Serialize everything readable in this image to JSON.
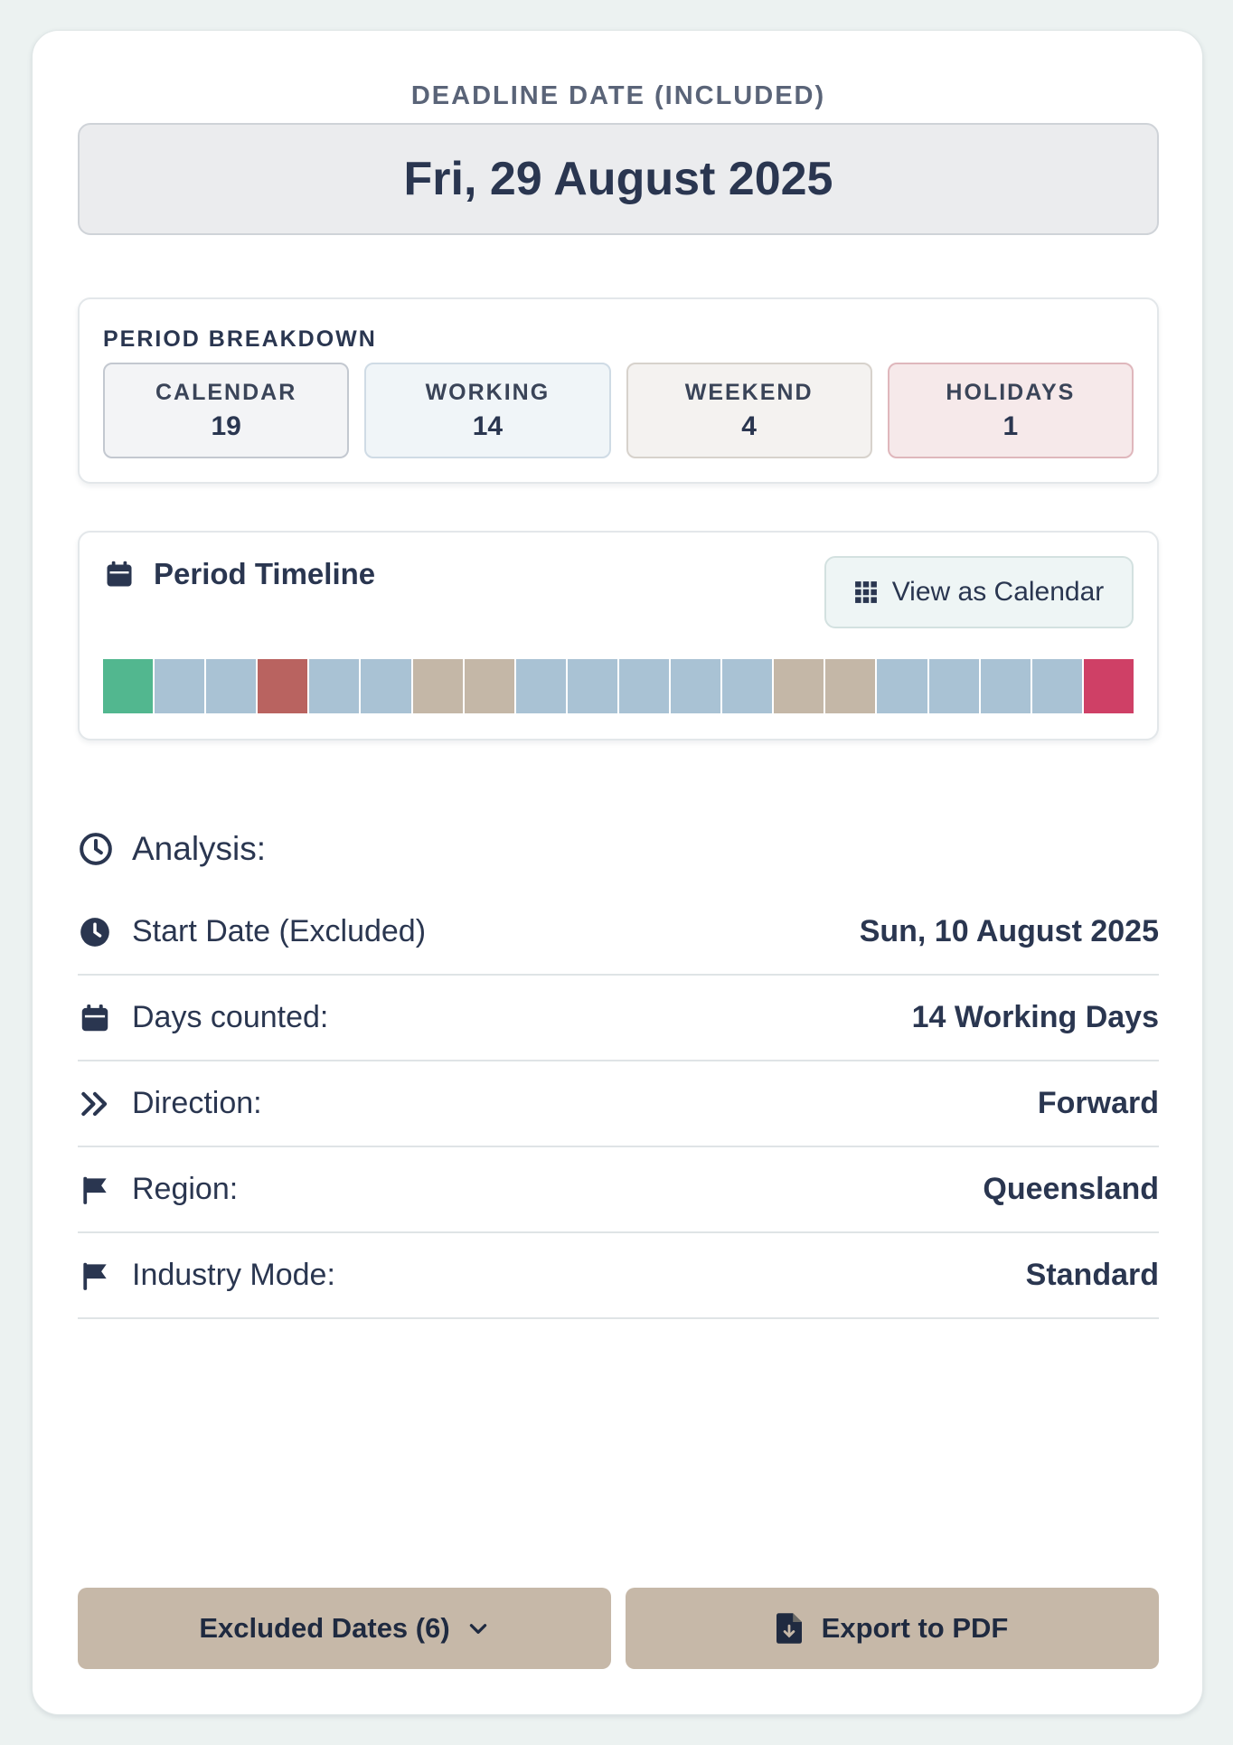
{
  "deadline": {
    "label": "DEADLINE DATE (INCLUDED)",
    "value": "Fri, 29 August 2025"
  },
  "breakdown": {
    "title": "PERIOD BREAKDOWN",
    "tiles": [
      {
        "label": "CALENDAR",
        "value": "19"
      },
      {
        "label": "WORKING",
        "value": "14"
      },
      {
        "label": "WEEKEND",
        "value": "4"
      },
      {
        "label": "HOLIDAYS",
        "value": "1"
      }
    ]
  },
  "timeline": {
    "title": "Period Timeline",
    "view_button": "View as Calendar",
    "title_icon": "calendar-icon",
    "button_icon": "grid-icon",
    "colors": {
      "start": "#52b78f",
      "working": "#a9c2d4",
      "weekend": "#c4b7a7",
      "holiday": "#b96360",
      "deadline": "#cf4066"
    },
    "days": [
      "start",
      "working",
      "working",
      "holiday",
      "working",
      "working",
      "weekend",
      "weekend",
      "working",
      "working",
      "working",
      "working",
      "working",
      "weekend",
      "weekend",
      "working",
      "working",
      "working",
      "working",
      "deadline"
    ]
  },
  "analysis": {
    "title": "Analysis:",
    "title_icon": "clock-outline-icon",
    "rows": [
      {
        "label": "Start Date (Excluded)",
        "value": "Sun, 10 August 2025",
        "icon": "clock-icon"
      },
      {
        "label": "Days counted:",
        "value": "14 Working Days",
        "icon": "calendar-icon"
      },
      {
        "label": "Direction:",
        "value": "Forward",
        "icon": "double-chevron-right-icon"
      },
      {
        "label": "Region:",
        "value": "Queensland",
        "icon": "flag-icon"
      },
      {
        "label": "Industry Mode:",
        "value": "Standard",
        "icon": "flag-icon"
      }
    ]
  },
  "actions": {
    "excluded_label": "Excluded Dates (6)",
    "export_label": "Export to PDF"
  }
}
